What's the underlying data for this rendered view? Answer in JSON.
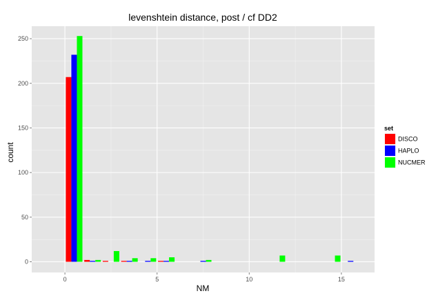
{
  "chart_data": {
    "type": "bar",
    "title": "levenshtein distance, post / cf DD2",
    "xlabel": "NM",
    "ylabel": "count",
    "xlim": [
      -1.8,
      16.8
    ],
    "ylim": [
      -12,
      264
    ],
    "x_ticks": [
      0,
      5,
      10,
      15
    ],
    "x_tick_labels": [
      "0",
      "5",
      "10",
      "15"
    ],
    "y_ticks": [
      0,
      50,
      100,
      150,
      200,
      250
    ],
    "y_tick_labels": [
      "0",
      "50",
      "100",
      "150",
      "200",
      "250"
    ],
    "grid": true,
    "legend_position": "right",
    "legend_title": "set",
    "x": [
      0,
      1,
      2,
      3,
      4,
      5,
      6,
      7,
      8,
      9,
      10,
      11,
      12,
      13,
      14,
      15
    ],
    "series": [
      {
        "name": "DISCO",
        "color": "#ff0000",
        "values": [
          207,
          2,
          1,
          1,
          0,
          1,
          0,
          0,
          0,
          0,
          0,
          0,
          0,
          0,
          0,
          0
        ]
      },
      {
        "name": "HAPLO",
        "color": "#0000ff",
        "values": [
          232,
          1,
          0,
          1,
          1,
          1,
          0,
          1,
          0,
          0,
          0,
          0,
          0,
          0,
          0,
          1
        ]
      },
      {
        "name": "NUCMER",
        "color": "#00ff00",
        "values": [
          253,
          2,
          12,
          4,
          4,
          5,
          0,
          2,
          0,
          0,
          0,
          7,
          0,
          0,
          7,
          0
        ]
      }
    ]
  }
}
